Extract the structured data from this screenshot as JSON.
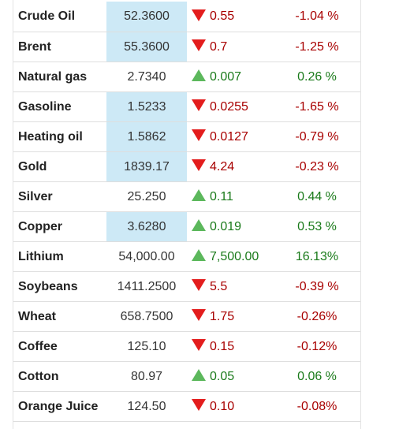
{
  "colors": {
    "down_text": "#a80000",
    "up_text": "#1a7a1a",
    "down_arrow": "#e31d1d",
    "up_arrow": "#5cb85c",
    "highlight": "#cde9f6"
  },
  "rows": [
    {
      "name": "Crude Oil",
      "price": "52.3600",
      "direction": "down",
      "change": "0.55",
      "percent": "-1.04 %",
      "highlight": true
    },
    {
      "name": "Brent",
      "price": "55.3600",
      "direction": "down",
      "change": "0.7",
      "percent": "-1.25 %",
      "highlight": true
    },
    {
      "name": "Natural gas",
      "price": "2.7340",
      "direction": "up",
      "change": "0.007",
      "percent": "0.26 %",
      "highlight": false
    },
    {
      "name": "Gasoline",
      "price": "1.5233",
      "direction": "down",
      "change": "0.0255",
      "percent": "-1.65 %",
      "highlight": true
    },
    {
      "name": "Heating oil",
      "price": "1.5862",
      "direction": "down",
      "change": "0.0127",
      "percent": "-0.79 %",
      "highlight": true
    },
    {
      "name": "Gold",
      "price": "1839.17",
      "direction": "down",
      "change": "4.24",
      "percent": "-0.23 %",
      "highlight": true
    },
    {
      "name": "Silver",
      "price": "25.250",
      "direction": "up",
      "change": "0.11",
      "percent": "0.44 %",
      "highlight": false
    },
    {
      "name": "Copper",
      "price": "3.6280",
      "direction": "up",
      "change": "0.019",
      "percent": "0.53 %",
      "highlight": true
    },
    {
      "name": "Lithium",
      "price": "54,000.00",
      "direction": "up",
      "change": "7,500.00",
      "percent": "16.13%",
      "highlight": false
    },
    {
      "name": "Soybeans",
      "price": "1411.2500",
      "direction": "down",
      "change": "5.5",
      "percent": "-0.39 %",
      "highlight": false
    },
    {
      "name": "Wheat",
      "price": "658.7500",
      "direction": "down",
      "change": "1.75",
      "percent": "-0.26%",
      "highlight": false
    },
    {
      "name": "Coffee",
      "price": "125.10",
      "direction": "down",
      "change": "0.15",
      "percent": "-0.12%",
      "highlight": false
    },
    {
      "name": "Cotton",
      "price": "80.97",
      "direction": "up",
      "change": "0.05",
      "percent": "0.06 %",
      "highlight": false
    },
    {
      "name": "Orange Juice",
      "price": "124.50",
      "direction": "down",
      "change": "0.10",
      "percent": "-0.08%",
      "highlight": false
    }
  ]
}
